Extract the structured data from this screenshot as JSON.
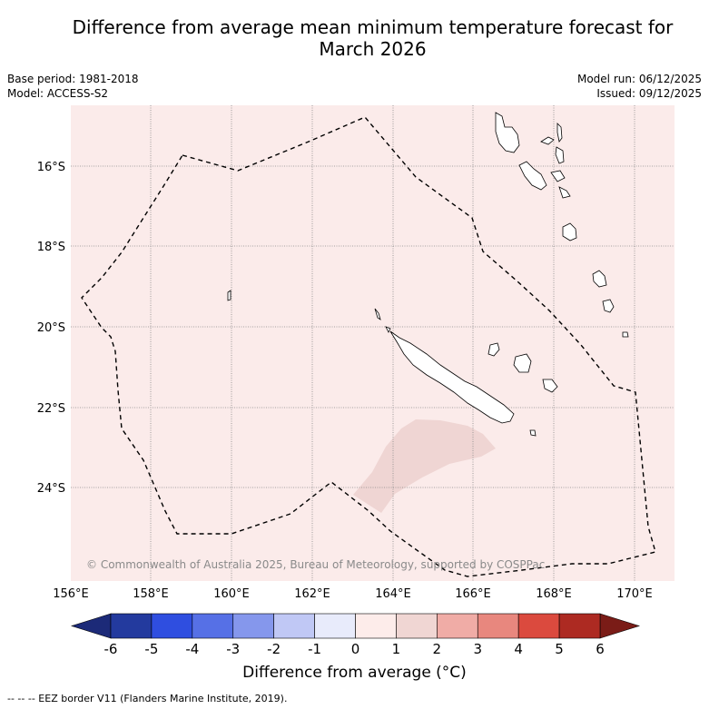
{
  "title_line1": "Difference from average mean minimum temperature forecast for",
  "title_line2": "March 2026",
  "base_period": "Base period: 1981-2018",
  "model": "Model: ACCESS-S2",
  "model_run": "Model run: 06/12/2025",
  "issued": "Issued: 09/12/2025",
  "copyright": "© Commonwealth of Australia 2025, Bureau of Meteorology, supported by COSPPac",
  "lat_labels": [
    "16°S",
    "18°S",
    "20°S",
    "22°S",
    "24°S"
  ],
  "lon_labels": [
    "156°E",
    "158°E",
    "160°E",
    "162°E",
    "164°E",
    "166°E",
    "168°E",
    "170°E"
  ],
  "colorbar": {
    "title": "Difference from average (°C)",
    "tick_labels": [
      "-6",
      "-5",
      "-4",
      "-3",
      "-2",
      "-1",
      "0",
      "1",
      "2",
      "3",
      "4",
      "5",
      "6"
    ],
    "colors": [
      "#233a9e",
      "#2f4ee0",
      "#5670e6",
      "#8597ec",
      "#c0c8f5",
      "#e8ebfb",
      "#fdecea",
      "#f0d6d3",
      "#f0aca6",
      "#e8877e",
      "#db4a3e",
      "#ad2a22"
    ],
    "under_color": "#1c2a78",
    "over_color": "#7a1c17"
  },
  "map_colors": {
    "background": "#fbebea",
    "anomaly_patch": "#efd5d3"
  },
  "footer": "-- -- -- EEZ border V11 (Flanders Marine Institute, 2019)."
}
